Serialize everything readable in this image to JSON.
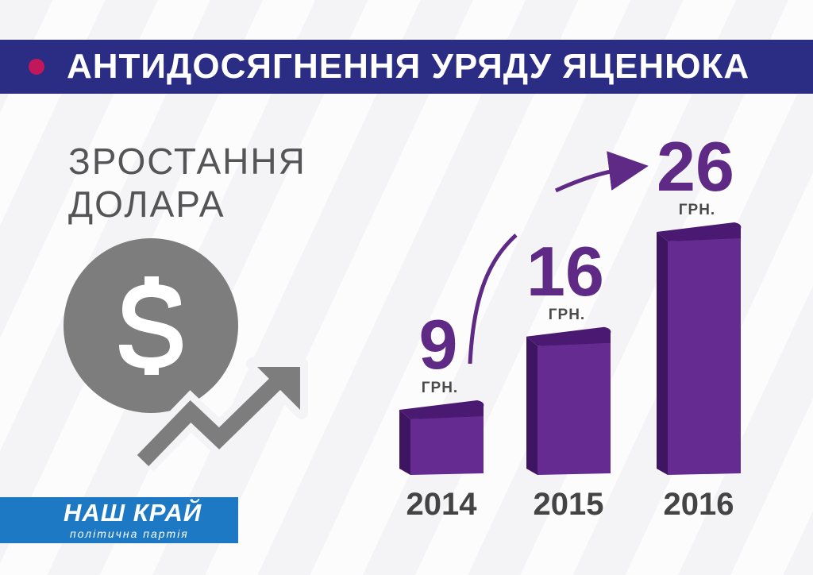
{
  "header": {
    "title": "АНТИДОСЯГНЕННЯ УРЯДУ ЯЦЕНЮКА"
  },
  "subtitle": {
    "line1": "ЗРОСТАННЯ",
    "line2": "ДОЛАРА"
  },
  "icons": {
    "illustration": "dollar-coin-rising-arrow-icon",
    "symbol": "$"
  },
  "logo": {
    "name": "НАШ КРАЙ",
    "tagline": "політична партія"
  },
  "colors": {
    "banner": "#2b2c83",
    "bullet": "#c2185b",
    "bar_front": "#652b91",
    "bar_side": "#3e1560",
    "bar_top": "#4a1a72",
    "value_text": "#5e2a86",
    "icon_gray": "#7d7d7d",
    "logo_bg": "#1e79c5"
  },
  "chart_data": {
    "type": "bar",
    "categories": [
      "2014",
      "2015",
      "2016"
    ],
    "values": [
      9,
      16,
      26
    ],
    "value_labels": [
      "9",
      "16",
      "26"
    ],
    "unit_label": "ГРН.",
    "title": "",
    "xlabel": "",
    "ylabel": "",
    "grid": false,
    "legend": "none",
    "style": "3d-bars"
  }
}
